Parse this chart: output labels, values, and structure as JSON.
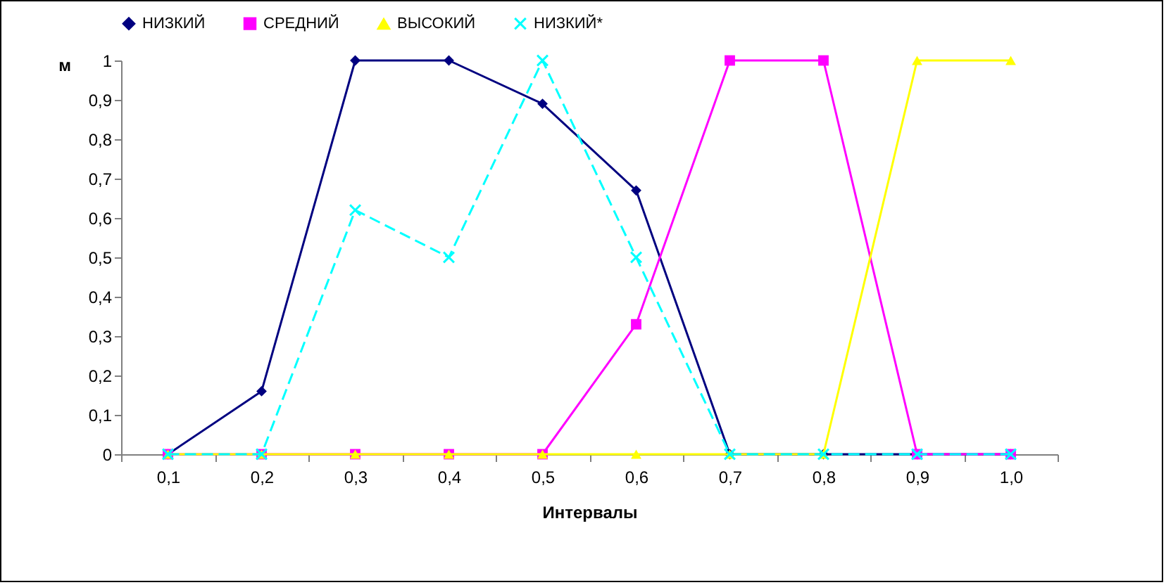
{
  "chart_data": {
    "type": "line",
    "xlabel": "Интервалы",
    "ylabel": "м",
    "categories": [
      "0,1",
      "0,2",
      "0,3",
      "0,4",
      "0,5",
      "0,6",
      "0,7",
      "0,8",
      "0,9",
      "1,0"
    ],
    "ylim": [
      0,
      1
    ],
    "yticks": [
      0,
      {
        "value": 0.1,
        "label": "0,1"
      },
      {
        "value": 0.2,
        "label": "0,2"
      },
      {
        "value": 0.3,
        "label": "0,3"
      },
      {
        "value": 0.4,
        "label": "0,4"
      },
      {
        "value": 0.5,
        "label": "0,5"
      },
      {
        "value": 0.6,
        "label": "0,6"
      },
      {
        "value": 0.7,
        "label": "0,7"
      },
      {
        "value": 0.8,
        "label": "0,8"
      },
      {
        "value": 0.9,
        "label": "0,9"
      },
      1
    ],
    "grid": false,
    "legend": "top",
    "series": [
      {
        "name": "НИЗКИЙ",
        "color": "#000080",
        "marker": "diamond",
        "line_style": "solid",
        "values": [
          0,
          0.16,
          1,
          1,
          0.89,
          0.67,
          0,
          0,
          0,
          0
        ]
      },
      {
        "name": "СРЕДНИЙ",
        "color": "#ff00ff",
        "marker": "square",
        "line_style": "solid",
        "values": [
          0,
          0,
          0,
          0,
          0,
          0.33,
          1,
          1,
          0,
          0
        ]
      },
      {
        "name": "ВЫСОКИЙ",
        "color": "#ffff00",
        "marker": "triangle",
        "line_style": "solid",
        "values": [
          0,
          0,
          0,
          0,
          0,
          0,
          0,
          0,
          1,
          1
        ]
      },
      {
        "name": "НИЗКИЙ*",
        "color": "#00ffff",
        "marker": "cross",
        "line_style": "dashed",
        "values": [
          0,
          0,
          0.62,
          0.5,
          1,
          0.5,
          0,
          0,
          0,
          0
        ]
      }
    ]
  }
}
